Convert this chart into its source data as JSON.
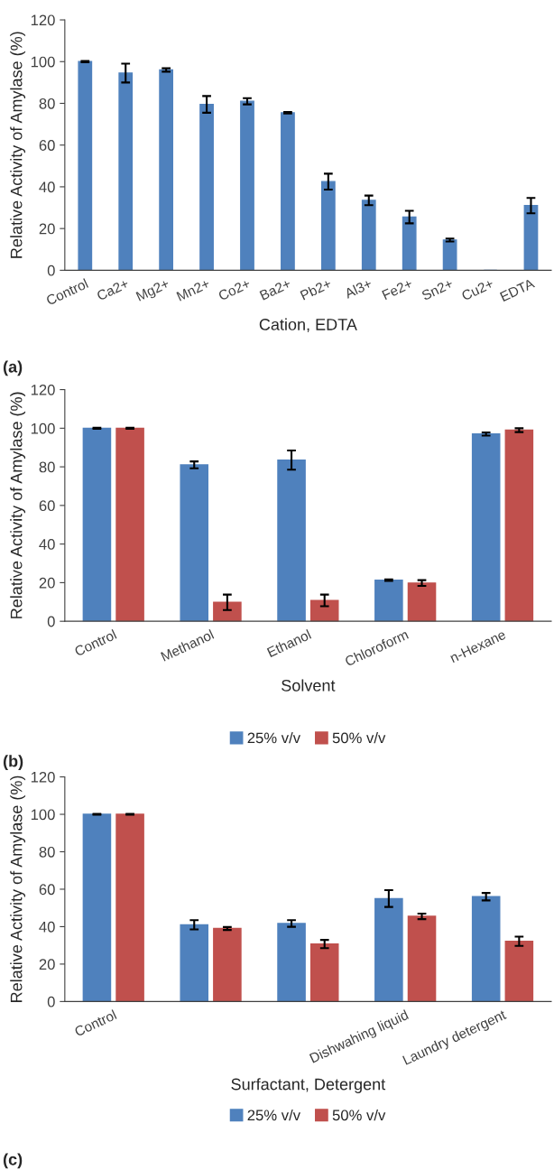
{
  "chart_data": [
    {
      "type": "bar",
      "xlabel": "Cation, EDTA",
      "ylabel": "Relative Activity of Amylase (%)",
      "categories": [
        "Control",
        "Ca2+",
        "Mg2+",
        "Mn2+",
        "Co2+",
        "Ba2+",
        "Pb2+",
        "Al3+",
        "Fe2+",
        "Sn2+",
        "Cu2+",
        "EDTA"
      ],
      "series": [
        {
          "color": "#4f81bd",
          "values": [
            100,
            94.5,
            96,
            79.5,
            81,
            75.5,
            42.5,
            33.5,
            25.5,
            14.5,
            0,
            31
          ],
          "errors": [
            0.3,
            4.5,
            0.8,
            4,
            1.5,
            0.4,
            3.8,
            2.3,
            3,
            0.7,
            null,
            3.7
          ]
        }
      ],
      "ylim": [
        0,
        120
      ],
      "yticks": [
        0,
        20,
        40,
        60,
        80,
        100,
        120
      ],
      "grid": false,
      "legend": false,
      "annotations": [
        "(a)"
      ]
    },
    {
      "type": "bar",
      "xlabel": "Solvent",
      "ylabel": "Relative Activity of Amylase (%)",
      "categories": [
        "Control",
        "Methanol",
        "Ethanol",
        "Chloroform",
        "n-Hexane"
      ],
      "series": [
        {
          "name": "25% v/v",
          "color": "#4f81bd",
          "values": [
            100,
            81,
            83.5,
            21.3,
            97
          ],
          "errors": [
            0.3,
            1.8,
            5,
            0.4,
            0.8
          ]
        },
        {
          "name": "50% v/v",
          "color": "#c0504d",
          "values": [
            100,
            9.8,
            10.8,
            19.8,
            99
          ],
          "errors": [
            0.3,
            4,
            3,
            1.5,
            1
          ]
        }
      ],
      "ylim": [
        0,
        120
      ],
      "yticks": [
        0,
        20,
        40,
        60,
        80,
        100,
        120
      ],
      "grid": false,
      "legend": "bottom",
      "annotations": [
        "(b)"
      ]
    },
    {
      "type": "bar",
      "xlabel": "Surfactant, Detergent",
      "ylabel": "Relative Activity of Amylase (%)",
      "categories": [
        "Control",
        null,
        null,
        "Dishwahing liquid",
        "Laundry detergent"
      ],
      "series": [
        {
          "name": "25% v/v",
          "color": "#4f81bd",
          "values": [
            100,
            41,
            41.7,
            55,
            56
          ],
          "errors": [
            0.2,
            2.5,
            1.8,
            4.5,
            2
          ]
        },
        {
          "name": "50% v/v",
          "color": "#c0504d",
          "values": [
            100,
            39,
            30.7,
            45.5,
            32.2
          ],
          "errors": [
            0.2,
            0.8,
            2.2,
            1.5,
            2.5
          ]
        }
      ],
      "ylim": [
        0,
        120
      ],
      "yticks": [
        0,
        20,
        40,
        60,
        80,
        100,
        120
      ],
      "grid": false,
      "legend": "bottom",
      "annotations": [
        "(c)"
      ]
    }
  ]
}
